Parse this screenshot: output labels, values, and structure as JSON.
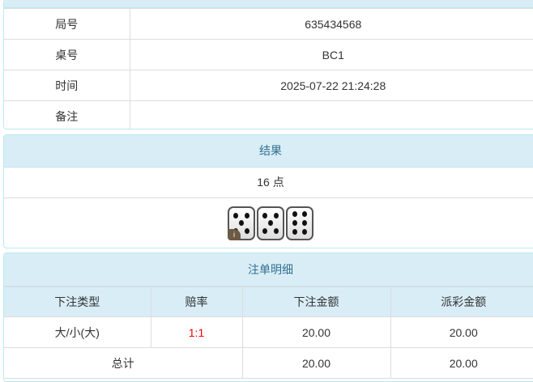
{
  "info": {
    "rows": [
      {
        "label": "局号",
        "value": "635434568"
      },
      {
        "label": "桌号",
        "value": "BC1"
      },
      {
        "label": "时间",
        "value": "2025-07-22 21:24:28"
      },
      {
        "label": "备注",
        "value": ""
      }
    ]
  },
  "result": {
    "title": "结果",
    "points": "16 点",
    "dice": [
      5,
      5,
      6
    ],
    "badge": "i"
  },
  "bets": {
    "title": "注单明细",
    "headers": [
      "下注类型",
      "赔率",
      "下注金额",
      "派彩金额"
    ],
    "row": {
      "type": "大/小(大)",
      "odds": "1:1",
      "amount": "20.00",
      "payout": "20.00"
    },
    "total": {
      "label": "总计",
      "amount": "20.00",
      "payout": "20.00"
    }
  },
  "colors": {
    "header_bg": "#d9edf7",
    "header_text": "#31708f",
    "odds": "#ee0000"
  }
}
